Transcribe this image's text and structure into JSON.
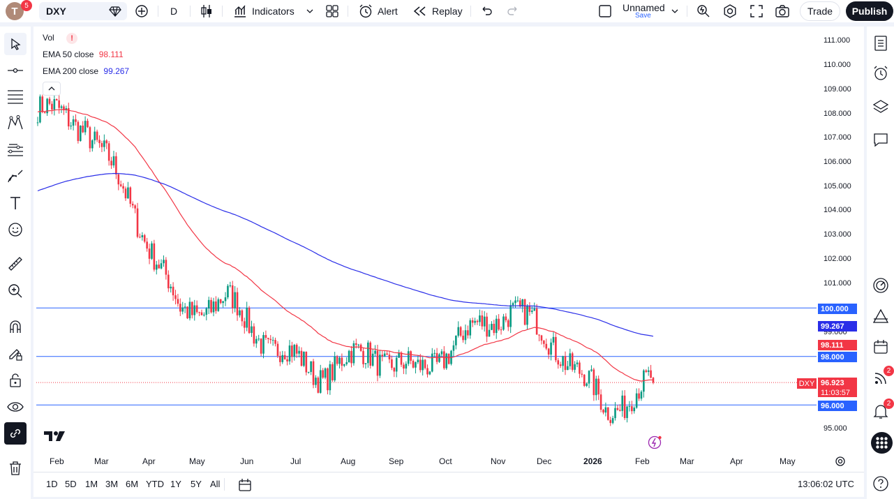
{
  "topbar": {
    "avatar_letter": "T",
    "avatar_badge": "5",
    "symbol": "DXY",
    "interval": "D",
    "indicators_label": "Indicators",
    "alert_label": "Alert",
    "replay_label": "Replay",
    "layout_name": "Unnamed",
    "save_label": "Save",
    "trade_label": "Trade",
    "publish_label": "Publish"
  },
  "legend": {
    "vol_label": "Vol",
    "ema50_label": "EMA 50 close",
    "ema50_value": "98.111",
    "ema200_label": "EMA 200 close",
    "ema200_value": "99.267"
  },
  "price_axis": {
    "labels": [
      "111.000",
      "110.000",
      "109.000",
      "108.000",
      "107.000",
      "106.000",
      "105.000",
      "104.000",
      "103.000",
      "102.000",
      "101.000",
      "100.000",
      "99.000",
      "98.000",
      "97.000",
      "96.000",
      "95.000"
    ],
    "tag_100": "100.000",
    "tag_ema200": "99.267",
    "tag_ema50": "98.111",
    "tag_98": "98.000",
    "tag_last": "96.923",
    "tag_countdown": "11:03:57",
    "tag_96": "96.000",
    "symbol_tag": "DXY"
  },
  "time_axis": {
    "labels": [
      "Feb",
      "Mar",
      "Apr",
      "May",
      "Jun",
      "Jul",
      "Aug",
      "Sep",
      "Oct",
      "Nov",
      "Dec",
      "2026",
      "Feb",
      "Mar",
      "Apr",
      "May"
    ]
  },
  "bottombar": {
    "ranges": [
      "1D",
      "5D",
      "1M",
      "3M",
      "6M",
      "YTD",
      "1Y",
      "5Y",
      "All"
    ],
    "clock": "13:06:02 UTC"
  },
  "right_toolbar": {
    "ideas_badge": "2",
    "alerts_badge": "2"
  },
  "colors": {
    "up": "#089981",
    "down": "#f23645",
    "ema50": "#f23645",
    "ema200": "#2a2ee8",
    "hline": "#2962ff",
    "last_price": "#f23645"
  },
  "chart_data": {
    "type": "candlestick",
    "symbol": "DXY",
    "interval": "D",
    "y_range": [
      94.5,
      111.5
    ],
    "horizontal_lines": [
      100.0,
      98.0,
      96.0
    ],
    "last_price": 96.923,
    "monthly_path": [
      {
        "month": "Jan",
        "price": 108.2
      },
      {
        "month": "Feb",
        "price": 107.6
      },
      {
        "month": "Mar",
        "price": 104.2
      },
      {
        "month": "Apr",
        "price": 99.8
      },
      {
        "month": "May",
        "price": 100.3
      },
      {
        "month": "Jun",
        "price": 98.3
      },
      {
        "month": "Jul",
        "price": 97.3
      },
      {
        "month": "Aug",
        "price": 98.2
      },
      {
        "month": "Sep",
        "price": 97.3
      },
      {
        "month": "Oct",
        "price": 98.8
      },
      {
        "month": "Nov",
        "price": 100.0
      },
      {
        "month": "Dec",
        "price": 98.4
      },
      {
        "month": "Jan",
        "price": 95.8
      },
      {
        "month": "Feb",
        "price": 96.9
      }
    ]
  }
}
